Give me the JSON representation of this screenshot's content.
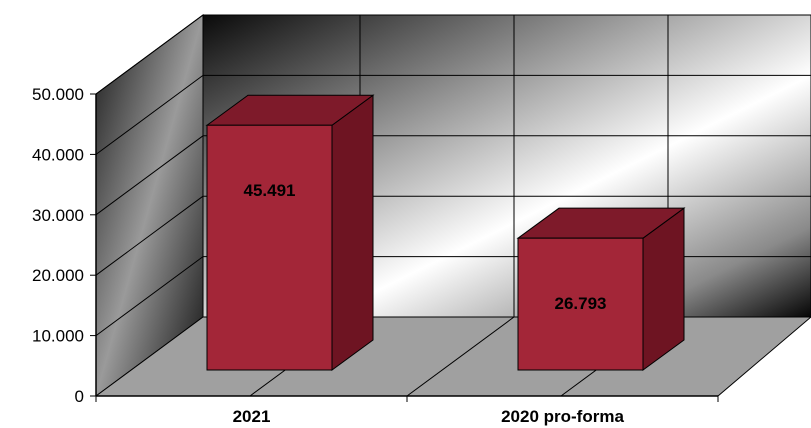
{
  "chart_data": {
    "type": "bar",
    "categories": [
      "2021",
      "2020 pro-forma"
    ],
    "values": [
      45491,
      26793
    ],
    "data_labels": [
      "45.491",
      "26.793"
    ],
    "yticks": [
      0,
      10000,
      20000,
      30000,
      40000,
      50000
    ],
    "ytick_labels": [
      "0",
      "10.000",
      "20.000",
      "30.000",
      "40.000",
      "50.000"
    ],
    "ylim": [
      0,
      50000
    ],
    "title": "",
    "xlabel": "",
    "ylabel": "",
    "grid": true,
    "legend": "none",
    "style": "3d-bar",
    "bar_color": "#a32638"
  }
}
